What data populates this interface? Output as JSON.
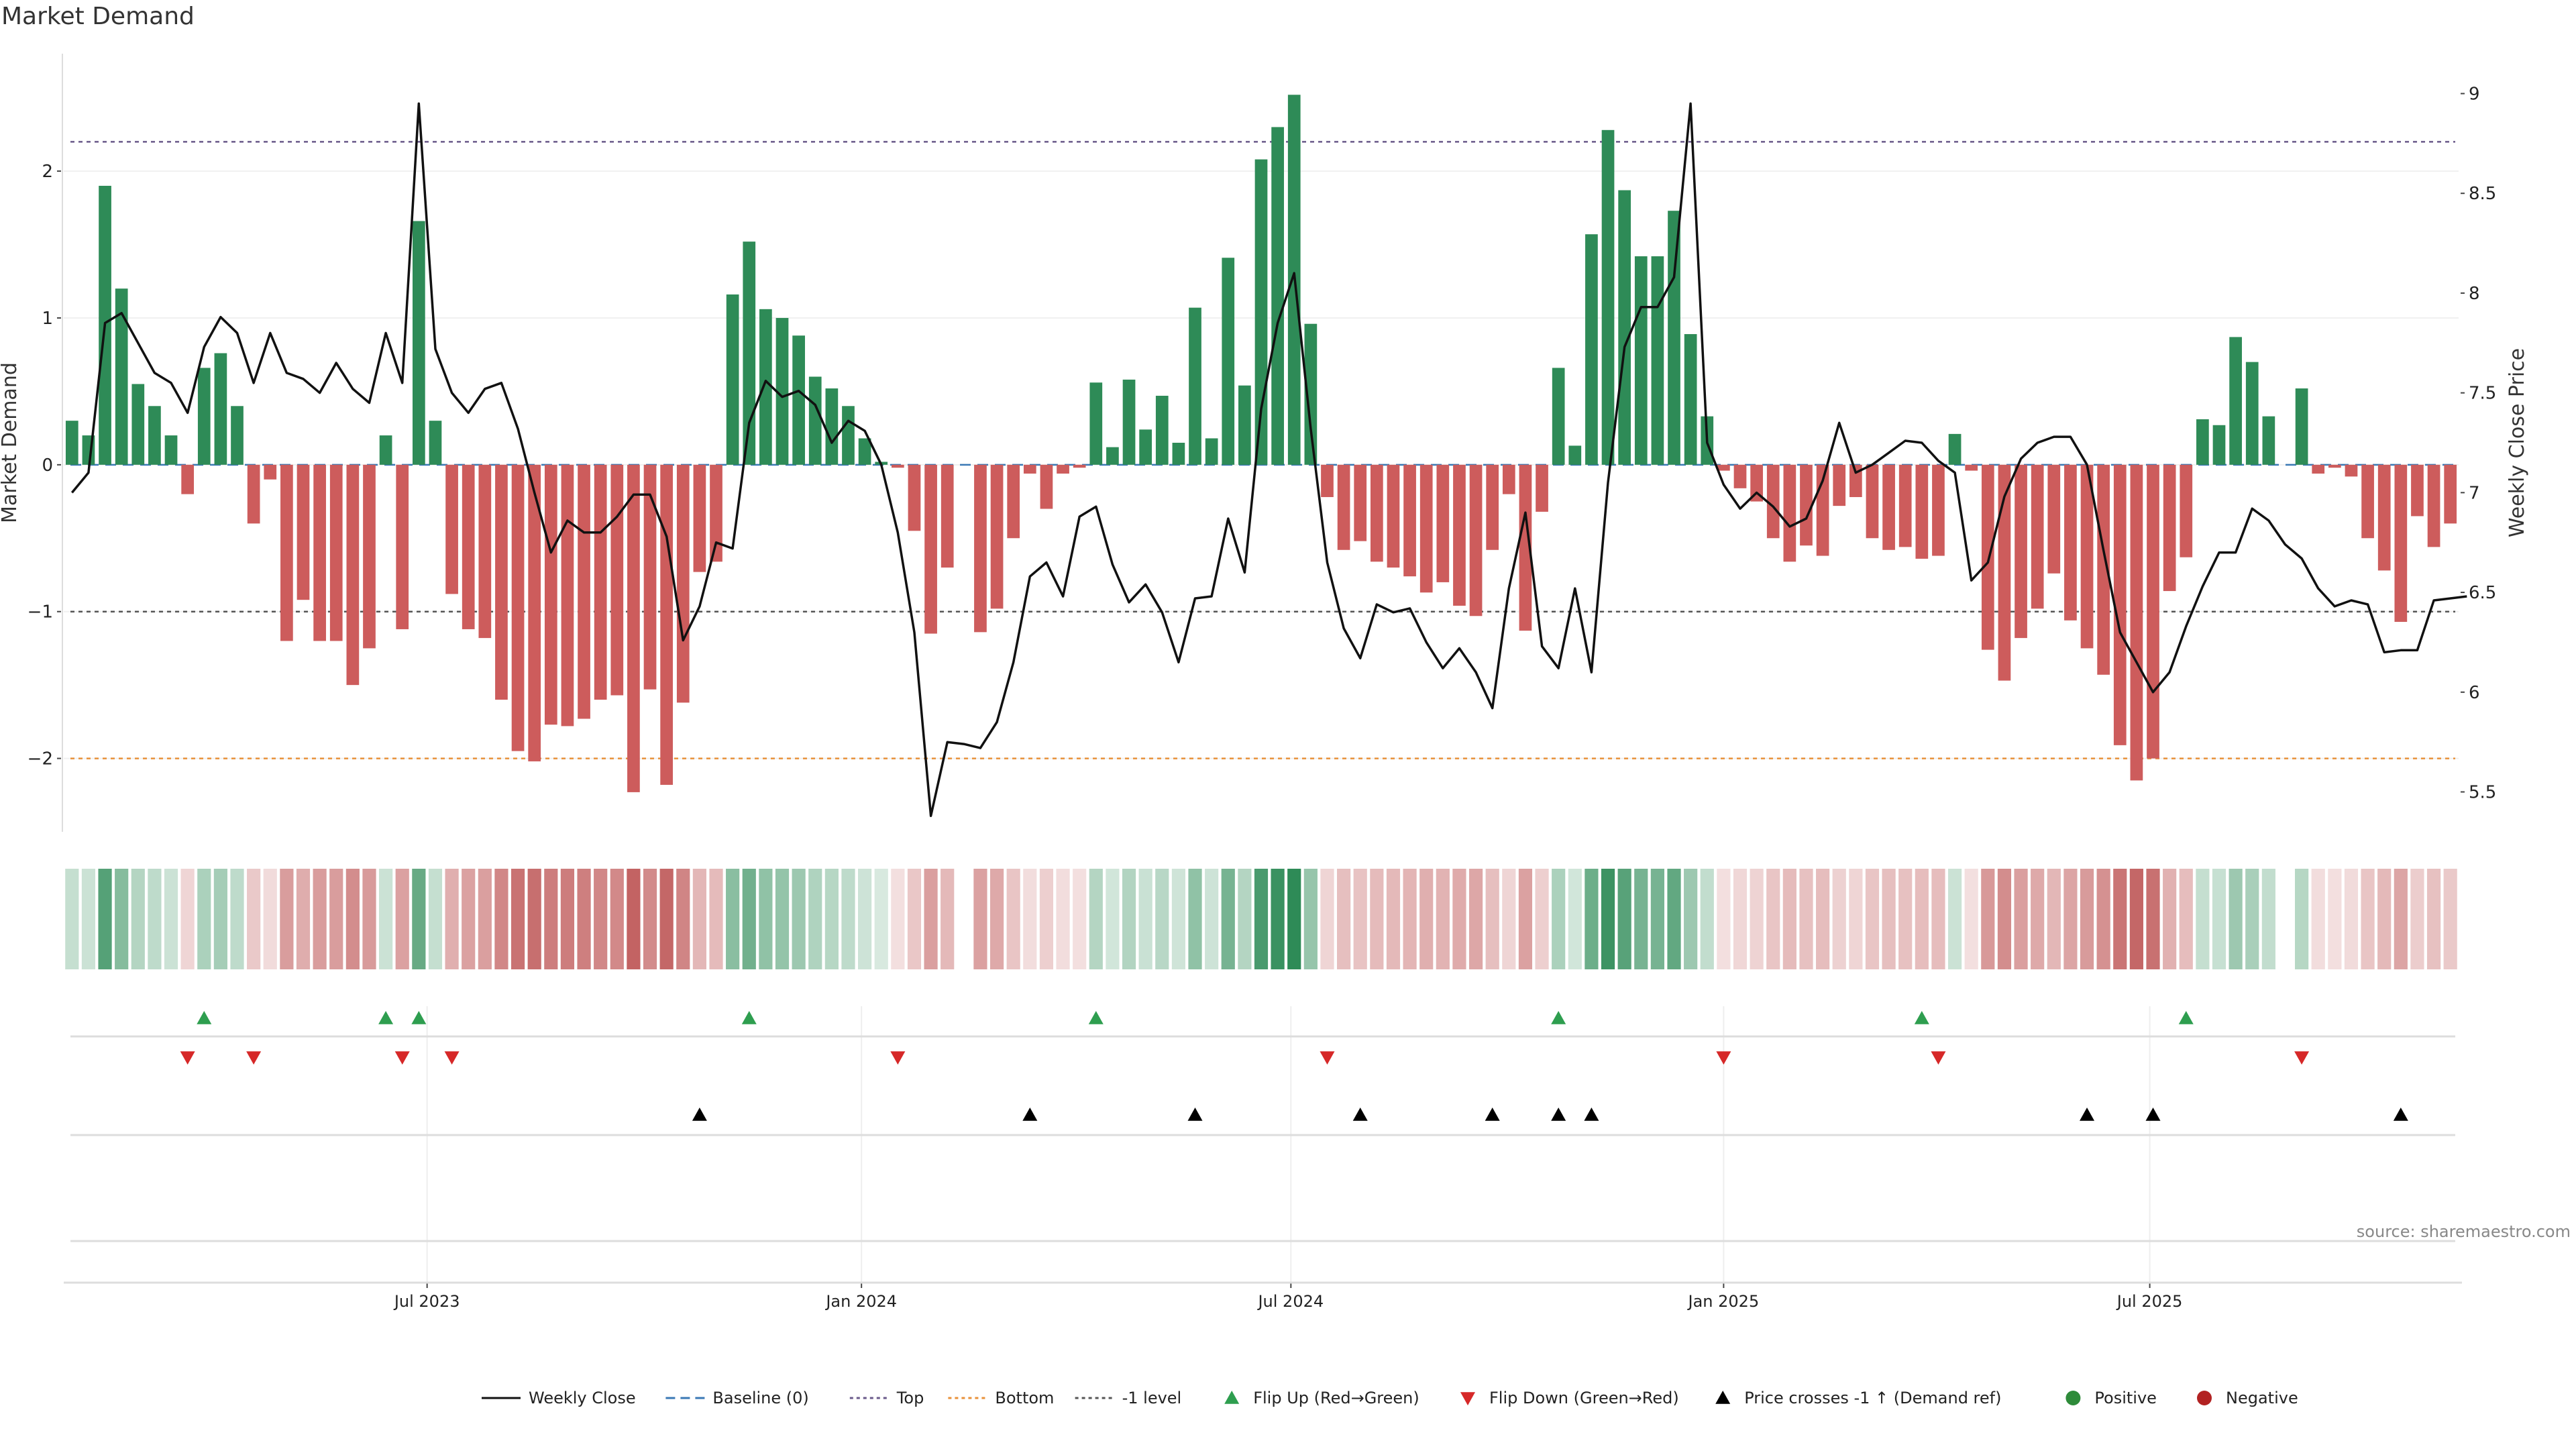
{
  "chart_data": {
    "type": "bar",
    "title": "Market Demand",
    "ylabel_left": "Market Demand",
    "ylabel_right": "Weekly Close Price",
    "source": "source: sharemaestro.com",
    "left_axis": {
      "ylim": [
        -2.5,
        2.8
      ],
      "ticks": [
        -2,
        -1,
        0,
        1,
        2
      ],
      "tick_labels": [
        "−2",
        "−1",
        "0",
        "1",
        "2"
      ]
    },
    "right_axis": {
      "ylim": [
        5.3,
        9.2
      ],
      "ticks": [
        5.5,
        6,
        6.5,
        7,
        7.5,
        8,
        8.5,
        9
      ],
      "tick_labels": [
        "5.5",
        "6",
        "6.5",
        "7",
        "7.5",
        "8",
        "8.5",
        "9"
      ]
    },
    "x_ticks": [
      {
        "index": 22,
        "label": "Jul 2023"
      },
      {
        "index": 48.3,
        "label": "Jan 2024"
      },
      {
        "index": 74.3,
        "label": "Jul 2024"
      },
      {
        "index": 100.5,
        "label": "Jan 2025"
      },
      {
        "index": 126.3,
        "label": "Jul 2025"
      }
    ],
    "levels": {
      "top": 2.2,
      "bottom": -2.0,
      "minus_one": -1.0,
      "baseline": 0
    },
    "demand": [
      0.3,
      0.2,
      1.9,
      1.2,
      0.55,
      0.4,
      0.2,
      -0.2,
      0.66,
      0.76,
      0.4,
      -0.4,
      -0.1,
      -1.2,
      -0.92,
      -1.2,
      -1.2,
      -1.5,
      -1.25,
      0.2,
      -1.12,
      1.66,
      0.3,
      -0.88,
      -1.12,
      -1.18,
      -1.6,
      -1.95,
      -2.02,
      -1.77,
      -1.78,
      -1.73,
      -1.6,
      -1.57,
      -2.23,
      -1.53,
      -2.18,
      -1.62,
      -0.73,
      -0.66,
      1.16,
      1.52,
      1.06,
      1.0,
      0.88,
      0.6,
      0.52,
      0.4,
      0.18,
      0.02,
      -0.02,
      -0.45,
      -1.15,
      -0.7,
      0,
      -1.14,
      -0.98,
      -0.5,
      -0.06,
      -0.3,
      -0.06,
      -0.02,
      0.56,
      0.12,
      0.58,
      0.24,
      0.47,
      0.15,
      1.07,
      0.18,
      1.41,
      0.54,
      2.08,
      2.3,
      2.52,
      0.96,
      -0.22,
      -0.58,
      -0.52,
      -0.66,
      -0.7,
      -0.76,
      -0.87,
      -0.8,
      -0.96,
      -1.03,
      -0.58,
      -0.2,
      -1.13,
      -0.32,
      0.66,
      0.13,
      1.57,
      2.28,
      1.87,
      1.42,
      1.42,
      1.73,
      0.89,
      0.33,
      -0.04,
      -0.16,
      -0.25,
      -0.5,
      -0.66,
      -0.55,
      -0.62,
      -0.28,
      -0.22,
      -0.5,
      -0.58,
      -0.56,
      -0.64,
      -0.62,
      0.21,
      -0.04,
      -1.26,
      -1.47,
      -1.18,
      -0.98,
      -0.74,
      -1.06,
      -1.25,
      -1.43,
      -1.91,
      -2.15,
      -2.0,
      -0.86,
      -0.63,
      0.31,
      0.27,
      0.87,
      0.7,
      0.33,
      0,
      0.52,
      -0.06,
      -0.02,
      -0.08,
      -0.5,
      -0.72,
      -1.07,
      -0.35,
      -0.56,
      -0.4
    ],
    "price": [
      7.0,
      7.1,
      7.85,
      7.9,
      7.75,
      7.6,
      7.55,
      7.4,
      7.73,
      7.88,
      7.8,
      7.55,
      7.8,
      7.6,
      7.57,
      7.5,
      7.65,
      7.52,
      7.45,
      7.8,
      7.55,
      8.95,
      7.72,
      7.5,
      7.4,
      7.52,
      7.55,
      7.32,
      7.0,
      6.7,
      6.86,
      6.8,
      6.8,
      6.88,
      6.99,
      6.99,
      6.78,
      6.26,
      6.43,
      6.75,
      6.72,
      7.35,
      7.56,
      7.48,
      7.51,
      7.44,
      7.25,
      7.36,
      7.31,
      7.14,
      6.8,
      6.3,
      5.38,
      5.75,
      5.74,
      5.72,
      5.85,
      6.15,
      6.58,
      6.65,
      6.48,
      6.88,
      6.93,
      6.64,
      6.45,
      6.54,
      6.4,
      6.15,
      6.47,
      6.48,
      6.87,
      6.6,
      7.42,
      7.85,
      8.1,
      7.32,
      6.65,
      6.32,
      6.17,
      6.44,
      6.4,
      6.42,
      6.25,
      6.12,
      6.22,
      6.1,
      5.92,
      6.52,
      6.9,
      6.23,
      6.12,
      6.52,
      6.1,
      7.05,
      7.73,
      7.93,
      7.93,
      8.08,
      8.95,
      7.25,
      7.04,
      6.92,
      7.0,
      6.93,
      6.83,
      6.87,
      7.06,
      7.35,
      7.1,
      7.14,
      7.2,
      7.26,
      7.25,
      7.16,
      7.1,
      6.56,
      6.65,
      6.98,
      7.17,
      7.25,
      7.28,
      7.28,
      7.14,
      6.71,
      6.3,
      6.15,
      6.0,
      6.1,
      6.33,
      6.53,
      6.7,
      6.7,
      6.92,
      6.86,
      6.74,
      6.67,
      6.52,
      6.43,
      6.46,
      6.44,
      6.2,
      6.21,
      6.21,
      6.46,
      6.47,
      6.48
    ],
    "flip_up_indices": [
      8,
      19,
      21,
      41,
      62,
      90,
      112,
      128
    ],
    "flip_down_indices": [
      7,
      11,
      20,
      23,
      50,
      76,
      100,
      113,
      135
    ],
    "price_cross_indices": [
      38,
      58,
      68,
      78,
      86,
      90,
      92,
      122,
      126,
      141
    ],
    "legend": [
      {
        "label": "Weekly Close",
        "kind": "line-solid",
        "color": "#111111"
      },
      {
        "label": "Baseline (0)",
        "kind": "line-dash",
        "color": "#3a78b5"
      },
      {
        "label": "Top",
        "kind": "line-dot",
        "color": "#6a5a8a"
      },
      {
        "label": "Bottom",
        "kind": "line-dot",
        "color": "#e8913a"
      },
      {
        "label": "-1 level",
        "kind": "line-dot",
        "color": "#555555"
      },
      {
        "label": "Flip Up (Red→Green)",
        "kind": "tri-up",
        "color": "#2e9e4f"
      },
      {
        "label": "Flip Down (Green→Red)",
        "kind": "tri-down",
        "color": "#d62828"
      },
      {
        "label": "Price crosses -1 ↑ (Demand ref)",
        "kind": "tri-up",
        "color": "#000000"
      },
      {
        "label": "Positive",
        "kind": "dot",
        "color": "#2e8b3a"
      },
      {
        "label": "Negative",
        "kind": "dot",
        "color": "#b22222"
      }
    ],
    "colors": {
      "positive_bar": "#2e8b57",
      "negative_bar": "#cd5c5c",
      "price_line": "#111111"
    }
  }
}
